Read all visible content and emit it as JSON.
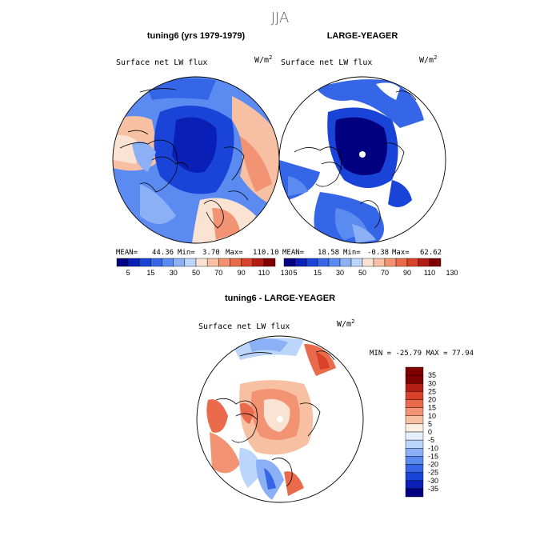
{
  "page": {
    "title": "JJA"
  },
  "palette_abs": [
    "#000080",
    "#0a1fb5",
    "#1a44d8",
    "#3566e8",
    "#5b8af0",
    "#8bb0f5",
    "#bcd5fa",
    "#fbe3d3",
    "#f7c0a2",
    "#f29474",
    "#ea6a4c",
    "#d94128",
    "#b21e13",
    "#800000"
  ],
  "palette_diff": [
    "#000080",
    "#0a1fb5",
    "#1a44d8",
    "#3566e8",
    "#5b8af0",
    "#8bb0f5",
    "#bcd5fa",
    "#e6effd",
    "#fdeee3",
    "#f7c0a2",
    "#f29474",
    "#ea6a4c",
    "#d94128",
    "#b21e13",
    "#800000"
  ],
  "chart_data": [
    {
      "type": "heatmap",
      "title": "tuning6 (yrs 1979-1979)",
      "variable": "Surface net LW flux",
      "units": "W/m",
      "units_sup": "2",
      "stats": {
        "mean_label": "MEAN=",
        "mean": "44.36",
        "min_label": "Min=",
        "min": "3.70",
        "max_label": "Max=",
        "max": "110.10"
      },
      "colorbar_ticks": [
        "5",
        "15",
        "30",
        "50",
        "70",
        "90",
        "110",
        "130"
      ]
    },
    {
      "type": "heatmap",
      "title": "LARGE-YEAGER",
      "variable": "Surface net LW flux",
      "units": "W/m",
      "units_sup": "2",
      "stats": {
        "mean_label": "MEAN=",
        "mean": "18.58",
        "min_label": "Min=",
        "min": "-0.38",
        "max_label": "Max=",
        "max": "62.62"
      },
      "colorbar_ticks": [
        "5",
        "15",
        "30",
        "50",
        "70",
        "90",
        "110",
        "130"
      ]
    },
    {
      "type": "heatmap",
      "title": "tuning6 - LARGE-YEAGER",
      "variable": "Surface net LW flux",
      "units": "W/m",
      "units_sup": "2",
      "minmax_text": "MIN = -25.79 MAX =  77.94",
      "colorbar_ticks": [
        "35",
        "30",
        "25",
        "20",
        "15",
        "10",
        "5",
        "0",
        "-5",
        "-10",
        "-15",
        "-20",
        "-25",
        "-30",
        "-35"
      ]
    }
  ]
}
